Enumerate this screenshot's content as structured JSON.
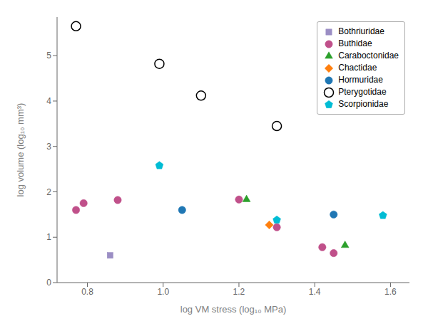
{
  "chart_data": {
    "type": "scatter",
    "xlabel": "log VM stress (log₁₀ MPa)",
    "ylabel": "log volume (log₁₀ mm³)",
    "xlim": [
      0.72,
      1.65
    ],
    "ylim": [
      0,
      5.85
    ],
    "xticks": [
      0.8,
      {
        "value": 1,
        "label": "1.0"
      },
      1.2,
      1.4,
      1.6
    ],
    "yticks": [
      0,
      1,
      2,
      3,
      4,
      5
    ],
    "grid": false,
    "legend": "upper right",
    "series": [
      {
        "name": "Bothriuridae",
        "color": "#9b8ec4",
        "marker": "square",
        "x": [
          0.86
        ],
        "values": [
          0.6
        ]
      },
      {
        "name": "Buthidae",
        "color": "#c0508a",
        "marker": "circle",
        "x": [
          0.77,
          0.79,
          0.88,
          1.2,
          1.3,
          1.42,
          1.45
        ],
        "values": [
          1.6,
          1.75,
          1.82,
          1.83,
          1.22,
          0.78,
          0.65
        ]
      },
      {
        "name": "Caraboctonidae",
        "color": "#2ca02c",
        "marker": "triangle",
        "x": [
          1.22,
          1.48
        ],
        "values": [
          1.83,
          0.82
        ]
      },
      {
        "name": "Chactidae",
        "color": "#ff7f0e",
        "marker": "diamond",
        "x": [
          1.28
        ],
        "values": [
          1.27
        ]
      },
      {
        "name": "Hormuridae",
        "color": "#1f77b4",
        "marker": "circle",
        "x": [
          1.05,
          1.45
        ],
        "values": [
          1.6,
          1.5
        ]
      },
      {
        "name": "Pterygotidae",
        "color": "#000000",
        "marker": "open_circle",
        "x": [
          0.77,
          0.99,
          1.1,
          1.3
        ],
        "values": [
          5.65,
          4.82,
          4.12,
          3.45
        ]
      },
      {
        "name": "Scorpionidae",
        "color": "#00bcd4",
        "marker": "pentagon",
        "x": [
          0.99,
          1.3,
          1.58
        ],
        "values": [
          2.58,
          1.38,
          1.48
        ]
      }
    ]
  }
}
